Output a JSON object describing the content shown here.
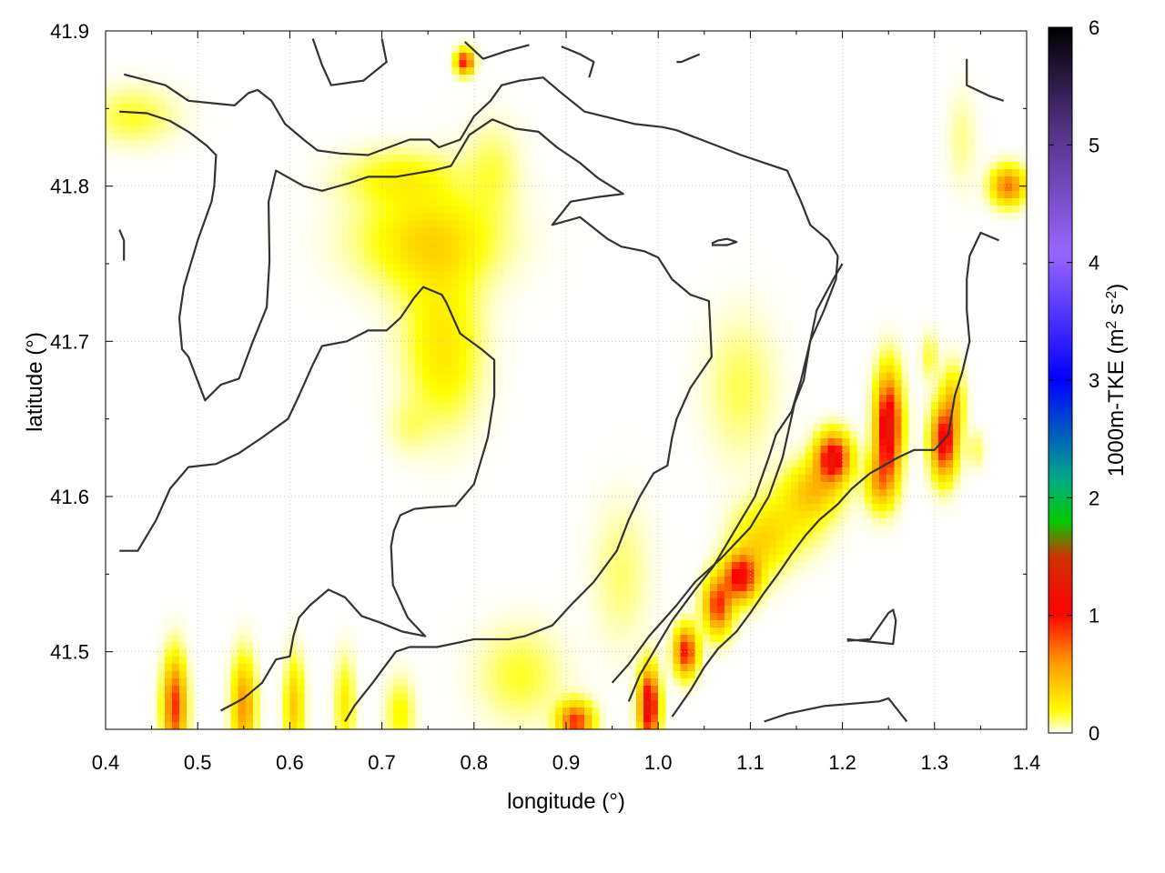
{
  "chart_data": {
    "type": "heatmap",
    "title": "",
    "xlabel": "longitude (°)",
    "ylabel": "latitude (°)",
    "xlim": [
      0.4,
      1.4
    ],
    "ylim": [
      41.45,
      41.9
    ],
    "x_ticks": [
      "0.4",
      "0.5",
      "0.6",
      "0.7",
      "0.8",
      "0.9",
      "1.0",
      "1.1",
      "1.2",
      "1.3",
      "1.4"
    ],
    "y_ticks": [
      "41.5",
      "41.6",
      "41.7",
      "41.8",
      "41.9"
    ],
    "x_tick_values": [
      0.4,
      0.5,
      0.6,
      0.7,
      0.8,
      0.9,
      1.0,
      1.1,
      1.2,
      1.3,
      1.4
    ],
    "y_tick_values": [
      41.5,
      41.6,
      41.7,
      41.8,
      41.9
    ],
    "grid": true,
    "colorbar": {
      "label_main": "1000m-TKE (m",
      "label_sup1": "2",
      "label_mid": " s",
      "label_sup2": "-2",
      "label_end": ")",
      "range": [
        0,
        6
      ],
      "ticks": [
        "0",
        "1",
        "2",
        "3",
        "4",
        "5",
        "6"
      ],
      "tick_values": [
        0,
        1,
        2,
        3,
        4,
        5,
        6
      ],
      "palette": [
        "#ffffff",
        "#ffff00",
        "#ff9900",
        "#ff0000",
        "#cc3300",
        "#00cc00",
        "#00aa88",
        "#0000ff",
        "#9966ff",
        "#553388",
        "#000000"
      ],
      "stops": [
        0,
        0.03,
        0.1,
        0.17,
        0.25,
        0.3,
        0.36,
        0.5,
        0.68,
        0.85,
        1.0
      ]
    },
    "hotspots": [
      {
        "lon": 0.79,
        "lat": 41.88,
        "val": 1.0,
        "slon": 0.006,
        "slat": 0.005
      },
      {
        "lon": 1.38,
        "lat": 41.8,
        "val": 0.7,
        "slon": 0.012,
        "slat": 0.008
      },
      {
        "lon": 0.43,
        "lat": 41.845,
        "val": 0.15,
        "slon": 0.03,
        "slat": 0.012
      },
      {
        "lon": 0.72,
        "lat": 41.805,
        "val": 0.2,
        "slon": 0.04,
        "slat": 0.012
      },
      {
        "lon": 0.75,
        "lat": 41.765,
        "val": 0.3,
        "slon": 0.05,
        "slat": 0.02
      },
      {
        "lon": 0.77,
        "lat": 41.69,
        "val": 0.18,
        "slon": 0.025,
        "slat": 0.03
      },
      {
        "lon": 0.82,
        "lat": 41.81,
        "val": 0.12,
        "slon": 0.02,
        "slat": 0.02
      },
      {
        "lon": 0.76,
        "lat": 41.72,
        "val": 0.12,
        "slon": 0.03,
        "slat": 0.04
      },
      {
        "lon": 0.73,
        "lat": 41.645,
        "val": 0.08,
        "slon": 0.015,
        "slat": 0.012
      },
      {
        "lon": 1.19,
        "lat": 41.625,
        "val": 1.2,
        "slon": 0.012,
        "slat": 0.01
      },
      {
        "lon": 1.17,
        "lat": 41.605,
        "val": 0.4,
        "slon": 0.02,
        "slat": 0.012
      },
      {
        "lon": 1.145,
        "lat": 41.585,
        "val": 0.2,
        "slon": 0.025,
        "slat": 0.015
      },
      {
        "lon": 1.25,
        "lat": 41.645,
        "val": 1.3,
        "slon": 0.009,
        "slat": 0.022
      },
      {
        "lon": 1.24,
        "lat": 41.61,
        "val": 0.5,
        "slon": 0.01,
        "slat": 0.012
      },
      {
        "lon": 1.31,
        "lat": 41.635,
        "val": 1.1,
        "slon": 0.009,
        "slat": 0.015
      },
      {
        "lon": 1.32,
        "lat": 41.66,
        "val": 0.4,
        "slon": 0.008,
        "slat": 0.015
      },
      {
        "lon": 1.295,
        "lat": 41.69,
        "val": 0.15,
        "slon": 0.006,
        "slat": 0.01
      },
      {
        "lon": 1.345,
        "lat": 41.63,
        "val": 0.12,
        "slon": 0.006,
        "slat": 0.008
      },
      {
        "lon": 1.09,
        "lat": 41.548,
        "val": 1.1,
        "slon": 0.012,
        "slat": 0.01
      },
      {
        "lon": 1.065,
        "lat": 41.53,
        "val": 0.9,
        "slon": 0.01,
        "slat": 0.012
      },
      {
        "lon": 1.11,
        "lat": 41.57,
        "val": 0.3,
        "slon": 0.02,
        "slat": 0.015
      },
      {
        "lon": 1.03,
        "lat": 41.5,
        "val": 1.0,
        "slon": 0.008,
        "slat": 0.01
      },
      {
        "lon": 1.09,
        "lat": 41.67,
        "val": 0.12,
        "slon": 0.025,
        "slat": 0.03
      },
      {
        "lon": 0.99,
        "lat": 41.465,
        "val": 1.3,
        "slon": 0.007,
        "slat": 0.015
      },
      {
        "lon": 0.91,
        "lat": 41.455,
        "val": 0.9,
        "slon": 0.012,
        "slat": 0.008
      },
      {
        "lon": 0.475,
        "lat": 41.465,
        "val": 0.9,
        "slon": 0.008,
        "slat": 0.02
      },
      {
        "lon": 0.55,
        "lat": 41.465,
        "val": 0.6,
        "slon": 0.008,
        "slat": 0.02
      },
      {
        "lon": 0.605,
        "lat": 41.465,
        "val": 0.4,
        "slon": 0.007,
        "slat": 0.02
      },
      {
        "lon": 0.66,
        "lat": 41.465,
        "val": 0.25,
        "slon": 0.007,
        "slat": 0.02
      },
      {
        "lon": 0.72,
        "lat": 41.46,
        "val": 0.2,
        "slon": 0.01,
        "slat": 0.015
      },
      {
        "lon": 0.85,
        "lat": 41.485,
        "val": 0.15,
        "slon": 0.03,
        "slat": 0.02
      },
      {
        "lon": 0.96,
        "lat": 41.55,
        "val": 0.1,
        "slon": 0.02,
        "slat": 0.03
      },
      {
        "lon": 1.33,
        "lat": 41.83,
        "val": 0.08,
        "slon": 0.01,
        "slat": 0.02
      }
    ],
    "contours": [
      [
        [
          0.42,
          41.872
        ],
        [
          0.465,
          41.865
        ],
        [
          0.49,
          41.855
        ],
        [
          0.54,
          41.852
        ],
        [
          0.555,
          41.86
        ],
        [
          0.565,
          41.862
        ],
        [
          0.58,
          41.855
        ],
        [
          0.595,
          41.84
        ],
        [
          0.615,
          41.83
        ],
        [
          0.63,
          41.823
        ],
        [
          0.655,
          41.821
        ],
        [
          0.685,
          41.82
        ],
        [
          0.73,
          41.83
        ],
        [
          0.752,
          41.83
        ],
        [
          0.762,
          41.825
        ],
        [
          0.785,
          41.83
        ],
        [
          0.8,
          41.845
        ],
        [
          0.818,
          41.855
        ],
        [
          0.83,
          41.865
        ],
        [
          0.85,
          41.868
        ],
        [
          0.875,
          41.87
        ],
        [
          0.895,
          41.86
        ],
        [
          0.92,
          41.848
        ],
        [
          0.975,
          41.84
        ],
        [
          1.005,
          41.838
        ],
        [
          1.02,
          41.836
        ],
        [
          1.055,
          41.828
        ],
        [
          1.09,
          41.82
        ],
        [
          1.115,
          41.815
        ],
        [
          1.14,
          41.81
        ],
        [
          1.155,
          41.79
        ],
        [
          1.165,
          41.775
        ],
        [
          1.185,
          41.765
        ],
        [
          1.195,
          41.755
        ],
        [
          1.193,
          41.74
        ],
        [
          1.18,
          41.72
        ],
        [
          1.165,
          41.7
        ],
        [
          1.155,
          41.675
        ],
        [
          1.145,
          41.655
        ],
        [
          1.128,
          41.64
        ],
        [
          1.12,
          41.625
        ],
        [
          1.105,
          41.6
        ],
        [
          1.09,
          41.585
        ],
        [
          1.075,
          41.57
        ],
        [
          1.06,
          41.555
        ],
        [
          1.04,
          41.54
        ],
        [
          1.015,
          41.52
        ],
        [
          0.995,
          41.5
        ],
        [
          0.98,
          41.485
        ],
        [
          0.968,
          41.468
        ]
      ],
      [
        [
          0.415,
          41.848
        ],
        [
          0.445,
          41.847
        ],
        [
          0.47,
          41.842
        ],
        [
          0.49,
          41.835
        ],
        [
          0.51,
          41.826
        ],
        [
          0.52,
          41.82
        ],
        [
          0.518,
          41.8
        ],
        [
          0.515,
          41.79
        ],
        [
          0.5,
          41.765
        ],
        [
          0.485,
          41.735
        ],
        [
          0.48,
          41.715
        ],
        [
          0.483,
          41.695
        ],
        [
          0.49,
          41.69
        ],
        [
          0.508,
          41.662
        ],
        [
          0.525,
          41.672
        ],
        [
          0.545,
          41.676
        ],
        [
          0.56,
          41.7
        ],
        [
          0.575,
          41.722
        ],
        [
          0.578,
          41.752
        ],
        [
          0.577,
          41.79
        ],
        [
          0.585,
          41.81
        ],
        [
          0.615,
          41.8
        ],
        [
          0.635,
          41.797
        ],
        [
          0.665,
          41.802
        ],
        [
          0.685,
          41.806
        ],
        [
          0.715,
          41.806
        ],
        [
          0.755,
          41.81
        ],
        [
          0.775,
          41.813
        ],
        [
          0.795,
          41.833
        ],
        [
          0.82,
          41.843
        ],
        [
          0.845,
          41.837
        ],
        [
          0.87,
          41.835
        ],
        [
          0.89,
          41.825
        ],
        [
          0.915,
          41.815
        ],
        [
          0.935,
          41.805
        ],
        [
          0.962,
          41.795
        ],
        [
          0.935,
          41.793
        ],
        [
          0.905,
          41.79
        ],
        [
          0.885,
          41.775
        ],
        [
          0.915,
          41.78
        ],
        [
          0.945,
          41.766
        ],
        [
          0.96,
          41.761
        ],
        [
          0.985,
          41.758
        ],
        [
          1.0,
          41.754
        ],
        [
          1.015,
          41.74
        ],
        [
          1.035,
          41.73
        ],
        [
          1.055,
          41.726
        ],
        [
          1.058,
          41.69
        ],
        [
          1.035,
          41.67
        ],
        [
          1.02,
          41.65
        ],
        [
          1.015,
          41.638
        ],
        [
          1.01,
          41.62
        ],
        [
          0.995,
          41.615
        ],
        [
          0.98,
          41.6
        ],
        [
          0.968,
          41.585
        ],
        [
          0.955,
          41.565
        ],
        [
          0.93,
          41.545
        ],
        [
          0.905,
          41.53
        ],
        [
          0.885,
          41.517
        ],
        [
          0.855,
          41.51
        ],
        [
          0.838,
          41.508
        ],
        [
          0.8,
          41.508
        ],
        [
          0.76,
          41.503
        ],
        [
          0.73,
          41.503
        ],
        [
          0.715,
          41.5
        ],
        [
          0.69,
          41.48
        ],
        [
          0.67,
          41.465
        ],
        [
          0.66,
          41.455
        ]
      ],
      [
        [
          0.415,
          41.565
        ],
        [
          0.435,
          41.565
        ],
        [
          0.455,
          41.585
        ],
        [
          0.47,
          41.605
        ],
        [
          0.49,
          41.619
        ],
        [
          0.52,
          41.621
        ],
        [
          0.545,
          41.628
        ],
        [
          0.57,
          41.638
        ],
        [
          0.598,
          41.65
        ],
        [
          0.61,
          41.665
        ],
        [
          0.625,
          41.685
        ],
        [
          0.635,
          41.697
        ],
        [
          0.662,
          41.7
        ],
        [
          0.685,
          41.707
        ],
        [
          0.705,
          41.707
        ],
        [
          0.72,
          41.715
        ],
        [
          0.735,
          41.728
        ],
        [
          0.745,
          41.735
        ],
        [
          0.765,
          41.73
        ],
        [
          0.77,
          41.725
        ],
        [
          0.785,
          41.705
        ],
        [
          0.808,
          41.695
        ],
        [
          0.822,
          41.688
        ],
        [
          0.822,
          41.665
        ],
        [
          0.815,
          41.638
        ],
        [
          0.8,
          41.608
        ],
        [
          0.78,
          41.594
        ],
        [
          0.752,
          41.593
        ],
        [
          0.735,
          41.592
        ],
        [
          0.72,
          41.588
        ],
        [
          0.713,
          41.578
        ],
        [
          0.71,
          41.568
        ],
        [
          0.712,
          41.543
        ],
        [
          0.728,
          41.522
        ],
        [
          0.747,
          41.51
        ],
        [
          0.722,
          41.513
        ],
        [
          0.697,
          41.519
        ],
        [
          0.678,
          41.523
        ],
        [
          0.66,
          41.535
        ],
        [
          0.642,
          41.54
        ],
        [
          0.622,
          41.53
        ],
        [
          0.61,
          41.522
        ],
        [
          0.604,
          41.51
        ],
        [
          0.6,
          41.497
        ],
        [
          0.585,
          41.495
        ],
        [
          0.57,
          41.48
        ],
        [
          0.55,
          41.47
        ],
        [
          0.525,
          41.462
        ]
      ],
      [
        [
          0.95,
          41.48
        ],
        [
          0.968,
          41.492
        ],
        [
          0.99,
          41.51
        ],
        [
          1.02,
          41.53
        ],
        [
          1.04,
          41.545
        ],
        [
          1.055,
          41.553
        ],
        [
          1.068,
          41.56
        ],
        [
          1.1,
          41.58
        ],
        [
          1.12,
          41.6
        ],
        [
          1.135,
          41.625
        ],
        [
          1.148,
          41.66
        ],
        [
          1.158,
          41.675
        ],
        [
          1.165,
          41.7
        ],
        [
          1.172,
          41.72
        ],
        [
          1.19,
          41.74
        ],
        [
          1.2,
          41.75
        ]
      ],
      [
        [
          1.015,
          41.458
        ],
        [
          1.035,
          41.475
        ],
        [
          1.05,
          41.49
        ],
        [
          1.065,
          41.502
        ],
        [
          1.085,
          41.513
        ],
        [
          1.1,
          41.525
        ],
        [
          1.115,
          41.538
        ],
        [
          1.13,
          41.55
        ],
        [
          1.145,
          41.563
        ],
        [
          1.16,
          41.575
        ],
        [
          1.175,
          41.585
        ],
        [
          1.195,
          41.595
        ],
        [
          1.21,
          41.605
        ],
        [
          1.23,
          41.615
        ],
        [
          1.245,
          41.62
        ],
        [
          1.26,
          41.625
        ],
        [
          1.278,
          41.63
        ],
        [
          1.3,
          41.63
        ],
        [
          1.315,
          41.64
        ],
        [
          1.322,
          41.665
        ],
        [
          1.33,
          41.68
        ],
        [
          1.338,
          41.7
        ],
        [
          1.335,
          41.72
        ],
        [
          1.335,
          41.74
        ],
        [
          1.338,
          41.755
        ],
        [
          1.35,
          41.77
        ],
        [
          1.37,
          41.765
        ]
      ],
      [
        [
          1.115,
          41.455
        ],
        [
          1.14,
          41.46
        ],
        [
          1.18,
          41.465
        ],
        [
          1.24,
          41.468
        ],
        [
          1.25,
          41.47
        ],
        [
          1.27,
          41.455
        ]
      ],
      [
        [
          1.205,
          41.508
        ],
        [
          1.255,
          41.505
        ],
        [
          1.258,
          41.52
        ],
        [
          1.255,
          41.527
        ],
        [
          1.25,
          41.525
        ],
        [
          1.23,
          41.508
        ],
        [
          1.205,
          41.507
        ]
      ],
      [
        [
          0.415,
          41.772
        ],
        [
          0.42,
          41.765
        ],
        [
          0.42,
          41.752
        ]
      ],
      [
        [
          0.625,
          41.895
        ],
        [
          0.635,
          41.878
        ],
        [
          0.645,
          41.865
        ],
        [
          0.68,
          41.868
        ],
        [
          0.705,
          41.88
        ],
        [
          0.7,
          41.895
        ]
      ],
      [
        [
          0.79,
          41.893
        ],
        [
          0.81,
          41.882
        ],
        [
          0.835,
          41.887
        ],
        [
          0.86,
          41.891
        ]
      ],
      [
        [
          0.895,
          41.89
        ],
        [
          0.915,
          41.885
        ],
        [
          0.93,
          41.88
        ],
        [
          0.925,
          41.87
        ]
      ],
      [
        [
          1.02,
          41.88
        ],
        [
          1.025,
          41.88
        ],
        [
          1.045,
          41.885
        ]
      ],
      [
        [
          1.335,
          41.882
        ],
        [
          1.335,
          41.865
        ],
        [
          1.36,
          41.858
        ],
        [
          1.375,
          41.855
        ]
      ],
      [
        [
          1.058,
          41.762
        ],
        [
          1.075,
          41.762
        ],
        [
          1.085,
          41.764
        ],
        [
          1.075,
          41.766
        ],
        [
          1.065,
          41.765
        ],
        [
          1.058,
          41.763
        ]
      ]
    ]
  }
}
